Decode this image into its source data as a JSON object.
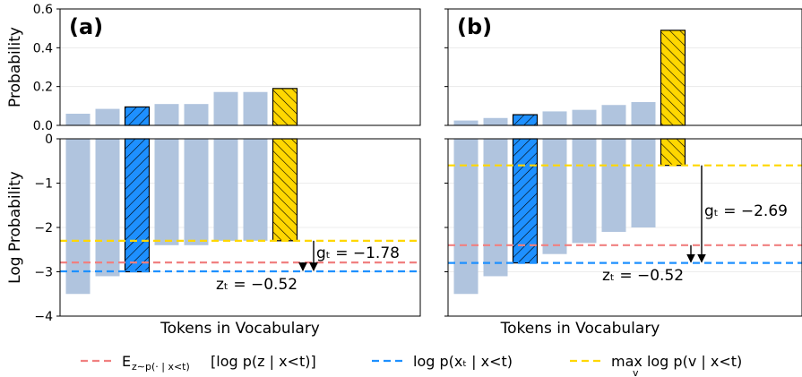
{
  "chart_data": [
    {
      "panel": "(a)",
      "type": "bar",
      "ylabel": "Probability",
      "ylim": [
        0,
        0.6
      ],
      "yticks": [
        "0.0",
        "0.2",
        "0.4",
        "0.6"
      ],
      "values": [
        0.06,
        0.085,
        0.095,
        0.11,
        0.11,
        0.172,
        0.172,
        0.19
      ],
      "highlight": {
        "target_index": 2,
        "max_index": 7
      }
    },
    {
      "panel": "(a)",
      "type": "bar",
      "xlabel": "Tokens in Vocabulary",
      "ylabel": "Log Probability",
      "ylim": [
        -4,
        0
      ],
      "yticks": [
        "0",
        "−1",
        "−2",
        "−3",
        "−4"
      ],
      "values": [
        -3.5,
        -3.1,
        -3.0,
        -2.4,
        -2.4,
        -2.3,
        -2.3,
        -2.3
      ],
      "highlight": {
        "target_index": 2,
        "max_index": 7
      },
      "reference_lines": {
        "expected": -2.79,
        "target": -2.99,
        "max": -2.3
      },
      "annotations": {
        "g": "gₜ = −1.78",
        "z": "zₜ = −0.52"
      }
    },
    {
      "panel": "(b)",
      "type": "bar",
      "ylim": [
        0,
        0.6
      ],
      "yticks": [
        "0.0",
        "0.2",
        "0.4",
        "0.6"
      ],
      "values": [
        0.025,
        0.038,
        0.055,
        0.072,
        0.08,
        0.105,
        0.12,
        0.49
      ],
      "highlight": {
        "target_index": 2,
        "max_index": 7
      }
    },
    {
      "panel": "(b)",
      "type": "bar",
      "xlabel": "Tokens in Vocabulary",
      "ylim": [
        -4,
        0
      ],
      "yticks": [
        "0",
        "−1",
        "−2",
        "−3",
        "−4"
      ],
      "values": [
        -3.5,
        -3.1,
        -2.8,
        -2.6,
        -2.35,
        -2.1,
        -2.0,
        -0.6
      ],
      "highlight": {
        "target_index": 2,
        "max_index": 7
      },
      "reference_lines": {
        "expected": -2.4,
        "target": -2.8,
        "max": -0.6
      },
      "annotations": {
        "g": "gₜ = −2.69",
        "z": "zₜ = −0.52"
      }
    }
  ],
  "legend": [
    {
      "label": "E",
      "sub": "z∼p(· | x<t)",
      "rest": "[log p(z | x<t)]",
      "color": "#f08080"
    },
    {
      "label": "log p(xₜ | x<t)",
      "color": "#1e90ff"
    },
    {
      "label": "max log p(v | x<t)",
      "sub": "v",
      "color": "#ffd700"
    }
  ],
  "colors": {
    "bar": "#b0c4de",
    "target": "#1e90ff",
    "max": "#ffd700",
    "expected_line": "#f08080",
    "target_line": "#1e90ff",
    "max_line": "#ffd700"
  }
}
